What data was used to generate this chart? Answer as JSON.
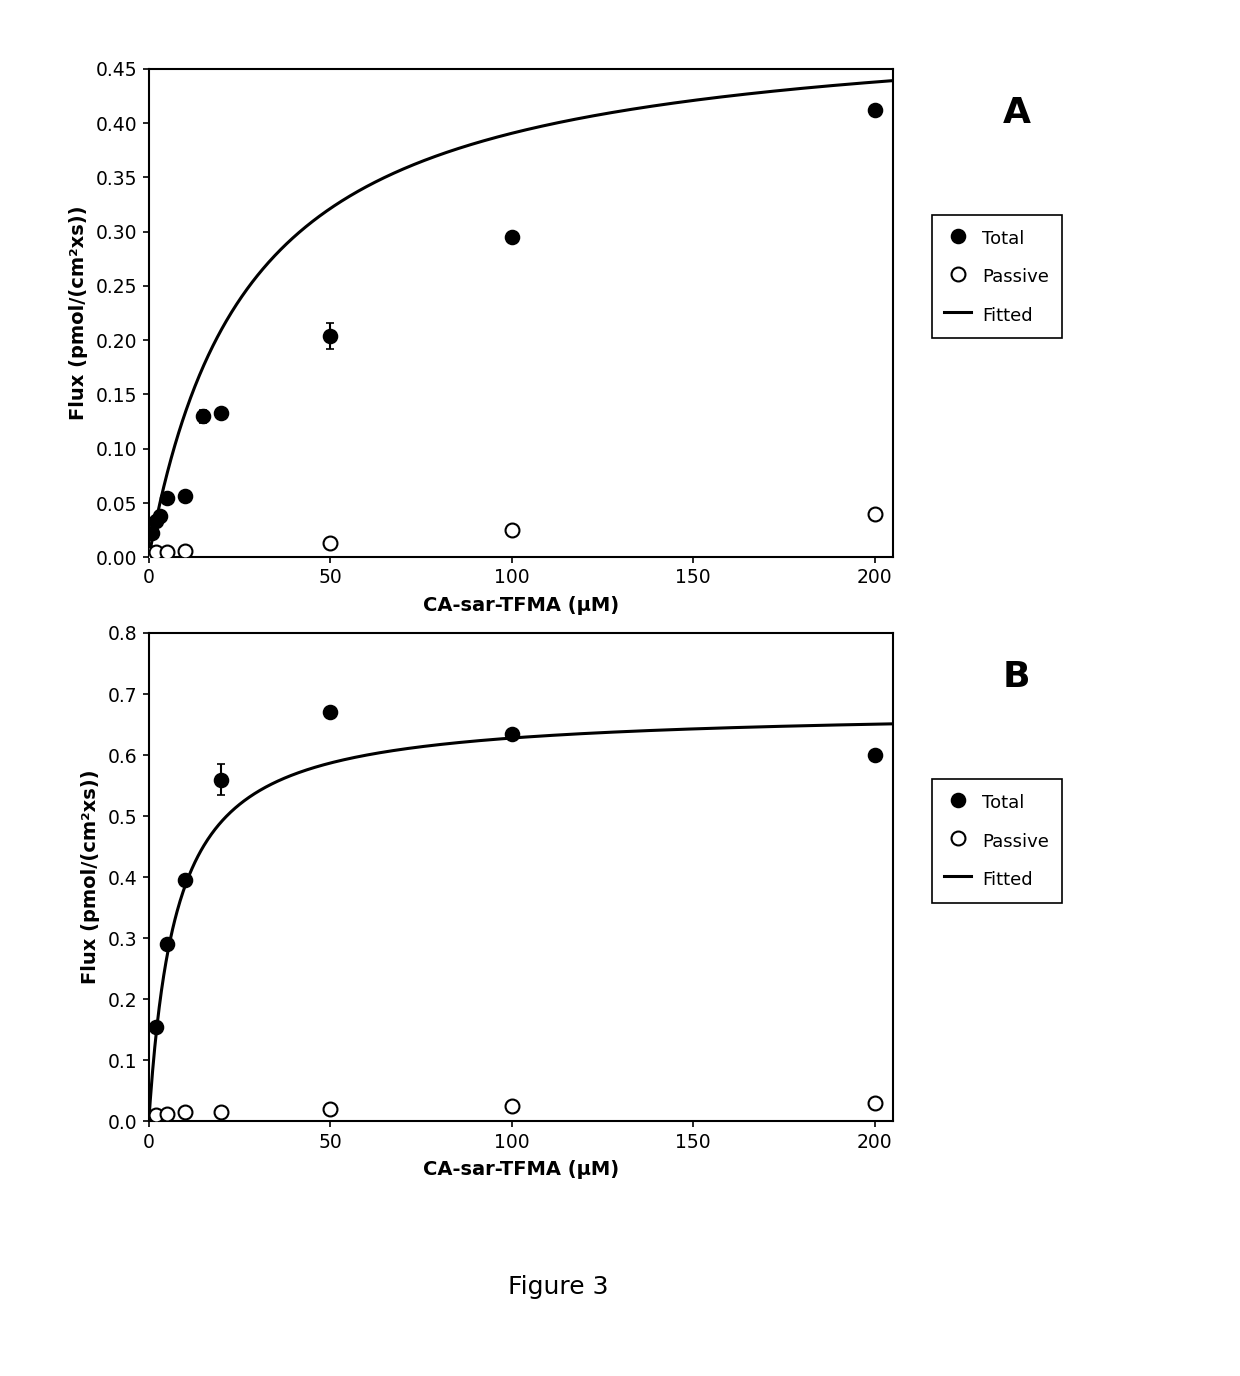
{
  "panel_A": {
    "label": "A",
    "total_x": [
      1,
      2,
      3,
      5,
      10,
      15,
      20,
      50,
      100,
      200
    ],
    "total_y": [
      0.022,
      0.033,
      0.038,
      0.055,
      0.056,
      0.13,
      0.133,
      0.204,
      0.295,
      0.412
    ],
    "total_yerr": [
      0.0,
      0.0,
      0.0,
      0.0,
      0.004,
      0.006,
      0.0,
      0.012,
      0.0,
      0.0
    ],
    "passive_x": [
      1,
      2,
      5,
      10,
      50,
      100,
      200
    ],
    "passive_y": [
      0.004,
      0.005,
      0.005,
      0.006,
      0.013,
      0.025,
      0.04
    ],
    "vmax": 0.498,
    "km": 27.5,
    "ylim": [
      0,
      0.45
    ],
    "yticks": [
      0,
      0.05,
      0.1,
      0.15,
      0.2,
      0.25,
      0.3,
      0.35,
      0.4,
      0.45
    ],
    "ylabel": "Flux (pmol/(cm²xs))",
    "xlabel": "CA-sar-TFMA (μM)"
  },
  "panel_B": {
    "label": "B",
    "total_x": [
      2,
      5,
      10,
      20,
      50,
      100,
      200
    ],
    "total_y": [
      0.155,
      0.29,
      0.395,
      0.56,
      0.67,
      0.635,
      0.6
    ],
    "total_yerr": [
      0.0,
      0.0,
      0.0,
      0.025,
      0.0,
      0.0,
      0.0
    ],
    "passive_x": [
      2,
      5,
      10,
      20,
      50,
      100,
      200
    ],
    "passive_y": [
      0.01,
      0.013,
      0.015,
      0.016,
      0.02,
      0.025,
      0.03
    ],
    "vmax": 0.675,
    "km": 7.5,
    "ylim": [
      0,
      0.8
    ],
    "yticks": [
      0,
      0.1,
      0.2,
      0.3,
      0.4,
      0.5,
      0.6,
      0.7,
      0.8
    ],
    "ylabel": "Flux (pmol/(cm²xs))",
    "xlabel": "CA-sar-TFMA (μM)"
  },
  "xlim": [
    0,
    205
  ],
  "xticks": [
    0,
    50,
    100,
    150,
    200
  ],
  "figure_caption": "Figure 3",
  "marker_size": 10,
  "line_color": "#000000",
  "marker_color_filled": "#000000",
  "marker_color_open": "#ffffff",
  "marker_edge_color": "#000000",
  "background_color": "#ffffff",
  "legend_labels": [
    "Total",
    "Passive",
    "Fitted"
  ]
}
